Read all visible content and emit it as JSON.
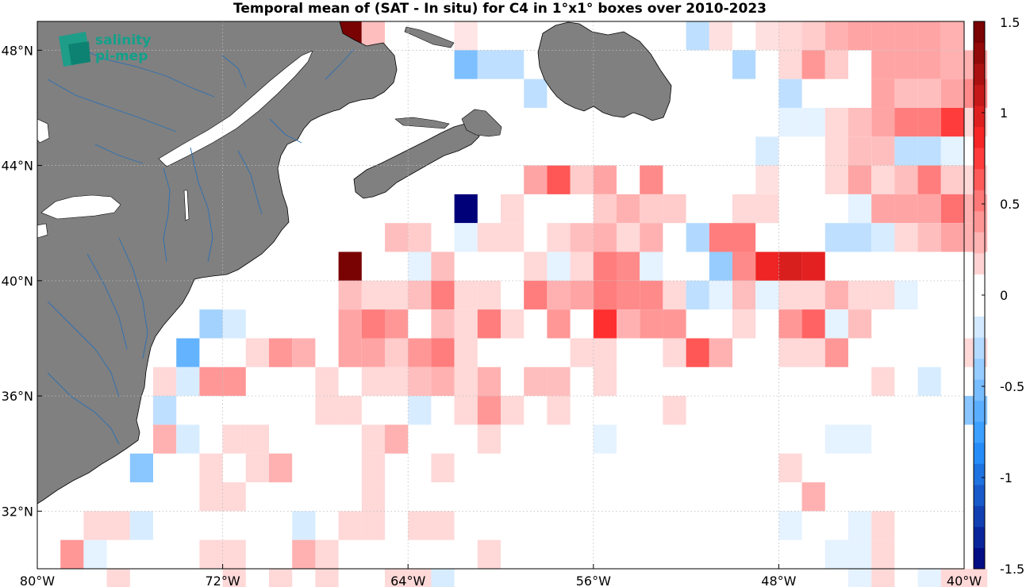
{
  "title": "Temporal mean of (SAT - In situ) for C4 in 1°x1° boxes over 2010-2023",
  "logo": {
    "line1": "salinity",
    "line2": "pi-mep",
    "color": "#13a08a"
  },
  "map": {
    "lon_range": [
      -80,
      -40
    ],
    "lat_range": [
      30,
      49
    ],
    "lon_ticks": [
      {
        "value": -80,
        "label": "80°W"
      },
      {
        "value": -72,
        "label": "72°W"
      },
      {
        "value": -64,
        "label": "64°W"
      },
      {
        "value": -56,
        "label": "56°W"
      },
      {
        "value": -48,
        "label": "48°W"
      },
      {
        "value": -40,
        "label": "40°W"
      }
    ],
    "lat_ticks": [
      {
        "value": 48,
        "label": "48°N"
      },
      {
        "value": 44,
        "label": "44°N"
      },
      {
        "value": 40,
        "label": "40°N"
      },
      {
        "value": 36,
        "label": "36°N"
      },
      {
        "value": 32,
        "label": "32°N"
      }
    ],
    "land_color": "#808080",
    "water_line_color": "#2a6fb4",
    "grid": "dotted"
  },
  "colorbar": {
    "range": [
      -1.5,
      1.5
    ],
    "ticks": [
      {
        "value": 1.5,
        "label": "1.5"
      },
      {
        "value": 1,
        "label": "1"
      },
      {
        "value": 0.5,
        "label": "0.5"
      },
      {
        "value": 0,
        "label": "0"
      },
      {
        "value": -0.5,
        "label": "-0.5"
      },
      {
        "value": -1,
        "label": "-1"
      },
      {
        "value": -1.5,
        "label": "-1.5"
      }
    ],
    "colormap": "blue-white-red"
  },
  "chart_data": {
    "type": "heatmap",
    "units": "1°x1° boxes",
    "columns": [
      "lon",
      "lat",
      "value"
    ],
    "cells": [
      [
        -67,
        49,
        1.45
      ],
      [
        -66,
        49,
        0.25
      ],
      [
        -62,
        49,
        0.1
      ],
      [
        -52,
        49,
        -0.25
      ],
      [
        -51,
        49,
        0.12
      ],
      [
        -49,
        49,
        0.12
      ],
      [
        -48,
        49,
        0.15
      ],
      [
        -47,
        49,
        0.2
      ],
      [
        -46,
        49,
        0.3
      ],
      [
        -45,
        49,
        0.35
      ],
      [
        -44,
        49,
        0.35
      ],
      [
        -43,
        49,
        0.35
      ],
      [
        -42,
        49,
        0.35
      ],
      [
        -41,
        49,
        0.3
      ],
      [
        -62,
        48,
        -0.5
      ],
      [
        -61,
        48,
        -0.25
      ],
      [
        -60,
        48,
        -0.25
      ],
      [
        -50,
        48,
        -0.3
      ],
      [
        -48,
        48,
        0.15
      ],
      [
        -47,
        48,
        0.4
      ],
      [
        -46,
        48,
        0.2
      ],
      [
        -44,
        48,
        0.35
      ],
      [
        -43,
        48,
        0.35
      ],
      [
        -42,
        48,
        0.35
      ],
      [
        -41,
        48,
        0.3
      ],
      [
        -40,
        48,
        0.3
      ],
      [
        -59,
        47,
        -0.25
      ],
      [
        -48,
        47,
        -0.25
      ],
      [
        -44,
        47,
        0.35
      ],
      [
        -43,
        47,
        0.25
      ],
      [
        -42,
        47,
        0.25
      ],
      [
        -41,
        47,
        0.35
      ],
      [
        -40,
        47,
        0.45
      ],
      [
        -48,
        46,
        -0.1
      ],
      [
        -47,
        46,
        -0.1
      ],
      [
        -46,
        46,
        0.15
      ],
      [
        -45,
        46,
        0.25
      ],
      [
        -44,
        46,
        0.35
      ],
      [
        -43,
        46,
        0.5
      ],
      [
        -42,
        46,
        0.5
      ],
      [
        -41,
        46,
        0.75
      ],
      [
        -40,
        46,
        0.15
      ],
      [
        -49,
        45,
        -0.15
      ],
      [
        -46,
        45,
        0.15
      ],
      [
        -45,
        45,
        0.25
      ],
      [
        -44,
        45,
        0.25
      ],
      [
        -43,
        45,
        -0.25
      ],
      [
        -42,
        45,
        -0.25
      ],
      [
        -41,
        45,
        -0.1
      ],
      [
        -59,
        44,
        0.35
      ],
      [
        -58,
        44,
        0.65
      ],
      [
        -57,
        44,
        0.2
      ],
      [
        -56,
        44,
        0.35
      ],
      [
        -54,
        44,
        0.45
      ],
      [
        -49,
        44,
        0.12
      ],
      [
        -46,
        44,
        0.15
      ],
      [
        -45,
        44,
        0.35
      ],
      [
        -44,
        44,
        0.15
      ],
      [
        -43,
        44,
        0.25
      ],
      [
        -42,
        44,
        0.5
      ],
      [
        -41,
        44,
        0.2
      ],
      [
        -40,
        44,
        0.15
      ],
      [
        -62,
        43,
        -1.5
      ],
      [
        -60,
        43,
        0.15
      ],
      [
        -56,
        43,
        0.2
      ],
      [
        -55,
        43,
        0.3
      ],
      [
        -54,
        43,
        0.2
      ],
      [
        -53,
        43,
        0.2
      ],
      [
        -50,
        43,
        0.15
      ],
      [
        -49,
        43,
        0.15
      ],
      [
        -45,
        43,
        -0.1
      ],
      [
        -44,
        43,
        0.35
      ],
      [
        -43,
        43,
        0.35
      ],
      [
        -42,
        43,
        0.35
      ],
      [
        -41,
        43,
        0.55
      ],
      [
        -40,
        43,
        0.3
      ],
      [
        -65,
        42,
        0.25
      ],
      [
        -64,
        42,
        0.2
      ],
      [
        -62,
        42,
        -0.1
      ],
      [
        -61,
        42,
        0.15
      ],
      [
        -60,
        42,
        0.15
      ],
      [
        -58,
        42,
        0.15
      ],
      [
        -57,
        42,
        0.25
      ],
      [
        -56,
        42,
        0.3
      ],
      [
        -55,
        42,
        0.15
      ],
      [
        -54,
        42,
        0.3
      ],
      [
        -52,
        42,
        -0.3
      ],
      [
        -51,
        42,
        0.5
      ],
      [
        -50,
        42,
        0.5
      ],
      [
        -46,
        42,
        -0.25
      ],
      [
        -45,
        42,
        -0.25
      ],
      [
        -44,
        42,
        -0.15
      ],
      [
        -43,
        42,
        0.15
      ],
      [
        -42,
        42,
        0.25
      ],
      [
        -41,
        42,
        0.35
      ],
      [
        -40,
        42,
        0.3
      ],
      [
        -67,
        41,
        1.45
      ],
      [
        -64,
        41,
        -0.1
      ],
      [
        -63,
        41,
        0.25
      ],
      [
        -59,
        41,
        0.15
      ],
      [
        -58,
        41,
        -0.1
      ],
      [
        -57,
        41,
        0.15
      ],
      [
        -56,
        41,
        0.5
      ],
      [
        -55,
        41,
        0.45
      ],
      [
        -54,
        41,
        -0.1
      ],
      [
        -51,
        41,
        -0.4
      ],
      [
        -50,
        41,
        0.45
      ],
      [
        -49,
        41,
        0.9
      ],
      [
        -48,
        41,
        1.0
      ],
      [
        -47,
        41,
        0.95
      ],
      [
        -67,
        40,
        0.25
      ],
      [
        -66,
        40,
        0.15
      ],
      [
        -65,
        40,
        0.15
      ],
      [
        -64,
        40,
        0.25
      ],
      [
        -63,
        40,
        0.5
      ],
      [
        -62,
        40,
        0.15
      ],
      [
        -61,
        40,
        0.15
      ],
      [
        -59,
        40,
        0.5
      ],
      [
        -58,
        40,
        0.3
      ],
      [
        -57,
        40,
        0.35
      ],
      [
        -56,
        40,
        0.5
      ],
      [
        -55,
        40,
        0.45
      ],
      [
        -54,
        40,
        0.45
      ],
      [
        -53,
        40,
        0.15
      ],
      [
        -52,
        40,
        -0.25
      ],
      [
        -51,
        40,
        -0.1
      ],
      [
        -50,
        40,
        0.25
      ],
      [
        -49,
        40,
        -0.1
      ],
      [
        -48,
        40,
        0.15
      ],
      [
        -47,
        40,
        0.15
      ],
      [
        -46,
        40,
        0.3
      ],
      [
        -45,
        40,
        0.15
      ],
      [
        -44,
        40,
        0.15
      ],
      [
        -43,
        40,
        -0.1
      ],
      [
        -73,
        39,
        -0.35
      ],
      [
        -72,
        39,
        -0.15
      ],
      [
        -67,
        39,
        0.35
      ],
      [
        -66,
        39,
        0.5
      ],
      [
        -65,
        39,
        0.4
      ],
      [
        -63,
        39,
        0.25
      ],
      [
        -62,
        39,
        0.15
      ],
      [
        -61,
        39,
        0.5
      ],
      [
        -60,
        39,
        0.15
      ],
      [
        -58,
        39,
        0.4
      ],
      [
        -56,
        39,
        0.8
      ],
      [
        -55,
        39,
        0.3
      ],
      [
        -54,
        39,
        0.4
      ],
      [
        -53,
        39,
        0.4
      ],
      [
        -50,
        39,
        0.15
      ],
      [
        -48,
        39,
        0.4
      ],
      [
        -47,
        39,
        0.6
      ],
      [
        -46,
        39,
        -0.1
      ],
      [
        -45,
        39,
        0.25
      ],
      [
        -74,
        38,
        -0.6
      ],
      [
        -71,
        38,
        0.15
      ],
      [
        -70,
        38,
        0.4
      ],
      [
        -69,
        38,
        0.3
      ],
      [
        -67,
        38,
        0.35
      ],
      [
        -66,
        38,
        0.35
      ],
      [
        -65,
        38,
        0.2
      ],
      [
        -64,
        38,
        0.4
      ],
      [
        -63,
        38,
        0.5
      ],
      [
        -62,
        38,
        0.15
      ],
      [
        -57,
        38,
        0.15
      ],
      [
        -56,
        38,
        0.15
      ],
      [
        -53,
        38,
        0.15
      ],
      [
        -52,
        38,
        0.65
      ],
      [
        -51,
        38,
        0.3
      ],
      [
        -48,
        38,
        0.15
      ],
      [
        -47,
        38,
        0.15
      ],
      [
        -46,
        38,
        0.4
      ],
      [
        -40,
        38,
        0.15
      ],
      [
        -75,
        37,
        0.15
      ],
      [
        -74,
        37,
        -0.15
      ],
      [
        -73,
        37,
        0.4
      ],
      [
        -72,
        37,
        0.4
      ],
      [
        -68,
        37,
        0.15
      ],
      [
        -66,
        37,
        0.15
      ],
      [
        -65,
        37,
        0.15
      ],
      [
        -64,
        37,
        0.25
      ],
      [
        -63,
        37,
        0.3
      ],
      [
        -62,
        37,
        0.15
      ],
      [
        -61,
        37,
        0.3
      ],
      [
        -59,
        37,
        0.25
      ],
      [
        -58,
        37,
        0.25
      ],
      [
        -56,
        37,
        0.15
      ],
      [
        -44,
        37,
        0.15
      ],
      [
        -42,
        37,
        -0.15
      ],
      [
        -75,
        36,
        -0.25
      ],
      [
        -68,
        36,
        0.15
      ],
      [
        -67,
        36,
        0.15
      ],
      [
        -64,
        36,
        -0.15
      ],
      [
        -62,
        36,
        0.15
      ],
      [
        -61,
        36,
        0.4
      ],
      [
        -60,
        36,
        0.15
      ],
      [
        -58,
        36,
        0.15
      ],
      [
        -53,
        36,
        0.15
      ],
      [
        -40,
        36,
        -0.45
      ],
      [
        -75,
        35,
        0.3
      ],
      [
        -74,
        35,
        -0.15
      ],
      [
        -72,
        35,
        0.15
      ],
      [
        -71,
        35,
        0.15
      ],
      [
        -66,
        35,
        0.15
      ],
      [
        -65,
        35,
        0.3
      ],
      [
        -61,
        35,
        0.15
      ],
      [
        -56,
        35,
        -0.1
      ],
      [
        -46,
        35,
        -0.1
      ],
      [
        -45,
        35,
        -0.1
      ],
      [
        -76,
        34,
        -0.45
      ],
      [
        -73,
        34,
        0.15
      ],
      [
        -71,
        34,
        0.15
      ],
      [
        -70,
        34,
        0.3
      ],
      [
        -66,
        34,
        0.15
      ],
      [
        -63,
        34,
        0.15
      ],
      [
        -48,
        34,
        0.15
      ],
      [
        -73,
        33,
        0.15
      ],
      [
        -72,
        33,
        0.15
      ],
      [
        -66,
        33,
        0.15
      ],
      [
        -47,
        33,
        0.3
      ],
      [
        -78,
        32,
        0.15
      ],
      [
        -77,
        32,
        0.15
      ],
      [
        -76,
        32,
        -0.15
      ],
      [
        -69,
        32,
        -0.15
      ],
      [
        -67,
        32,
        0.15
      ],
      [
        -66,
        32,
        0.15
      ],
      [
        -64,
        32,
        0.15
      ],
      [
        -63,
        32,
        0.15
      ],
      [
        -48,
        32,
        -0.1
      ],
      [
        -45,
        32,
        -0.1
      ],
      [
        -44,
        32,
        0.15
      ],
      [
        -79,
        31,
        0.4
      ],
      [
        -78,
        31,
        -0.1
      ],
      [
        -73,
        31,
        0.15
      ],
      [
        -72,
        31,
        0.15
      ],
      [
        -69,
        31,
        0.3
      ],
      [
        -68,
        31,
        0.15
      ],
      [
        -61,
        31,
        0.15
      ],
      [
        -46,
        31,
        -0.1
      ],
      [
        -45,
        31,
        -0.1
      ],
      [
        -44,
        31,
        0.15
      ],
      [
        -77,
        30,
        0.15
      ],
      [
        -72,
        30,
        0.15
      ],
      [
        -70,
        30,
        0.15
      ],
      [
        -68,
        30,
        0.15
      ],
      [
        -65,
        30,
        0.15
      ],
      [
        -64,
        30,
        0.15
      ],
      [
        -63,
        30,
        -0.15
      ],
      [
        -45,
        30,
        -0.1
      ],
      [
        -44,
        30,
        0.15
      ],
      [
        -42,
        30,
        -0.1
      ],
      [
        -41,
        30,
        0.15
      ],
      [
        -40,
        30,
        0.15
      ]
    ]
  }
}
